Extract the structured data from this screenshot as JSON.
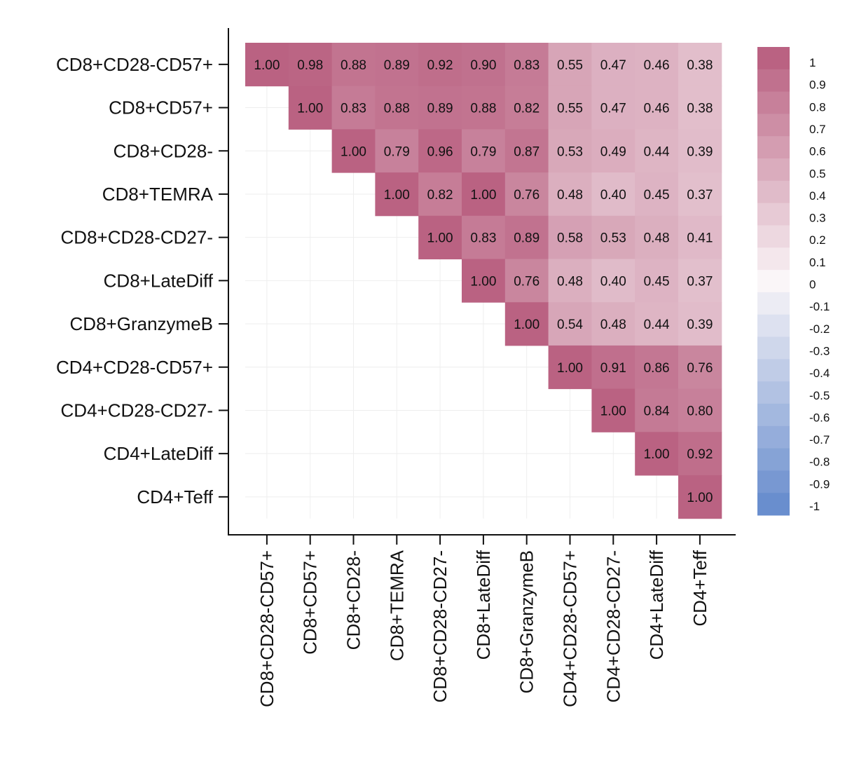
{
  "chart_data": {
    "type": "heatmap",
    "title": "",
    "layout": "upper-triangle correlation matrix",
    "labels": [
      "CD8+CD28-CD57+",
      "CD8+CD57+",
      "CD8+CD28-",
      "CD8+TEMRA",
      "CD8+CD28-CD27-",
      "CD8+LateDiff",
      "CD8+GranzymeB",
      "CD4+CD28-CD57+",
      "CD4+CD28-CD27-",
      "CD4+LateDiff",
      "CD4+Teff"
    ],
    "values": [
      [
        "1.00",
        "0.98",
        "0.88",
        "0.89",
        "0.92",
        "0.90",
        "0.83",
        "0.55",
        "0.47",
        "0.46",
        "0.38"
      ],
      [
        null,
        "1.00",
        "0.83",
        "0.88",
        "0.89",
        "0.88",
        "0.82",
        "0.55",
        "0.47",
        "0.46",
        "0.38"
      ],
      [
        null,
        null,
        "1.00",
        "0.79",
        "0.96",
        "0.79",
        "0.87",
        "0.53",
        "0.49",
        "0.44",
        "0.39"
      ],
      [
        null,
        null,
        null,
        "1.00",
        "0.82",
        "1.00",
        "0.76",
        "0.48",
        "0.40",
        "0.45",
        "0.37"
      ],
      [
        null,
        null,
        null,
        null,
        "1.00",
        "0.83",
        "0.89",
        "0.58",
        "0.53",
        "0.48",
        "0.41"
      ],
      [
        null,
        null,
        null,
        null,
        null,
        "1.00",
        "0.76",
        "0.48",
        "0.40",
        "0.45",
        "0.37"
      ],
      [
        null,
        null,
        null,
        null,
        null,
        null,
        "1.00",
        "0.54",
        "0.48",
        "0.44",
        "0.39"
      ],
      [
        null,
        null,
        null,
        null,
        null,
        null,
        null,
        "1.00",
        "0.91",
        "0.86",
        "0.76"
      ],
      [
        null,
        null,
        null,
        null,
        null,
        null,
        null,
        null,
        "1.00",
        "0.84",
        "0.80"
      ],
      [
        null,
        null,
        null,
        null,
        null,
        null,
        null,
        null,
        null,
        "1.00",
        "0.92"
      ],
      [
        null,
        null,
        null,
        null,
        null,
        null,
        null,
        null,
        null,
        null,
        "1.00"
      ]
    ],
    "colorbar": {
      "range": [
        -1,
        1
      ],
      "ticks": [
        "1",
        "0.9",
        "0.8",
        "0.7",
        "0.6",
        "0.5",
        "0.4",
        "0.3",
        "0.2",
        "0.1",
        "0",
        "-0.1",
        "-0.2",
        "-0.3",
        "-0.4",
        "-0.5",
        "-0.6",
        "-0.7",
        "-0.8",
        "-0.9",
        "-1"
      ],
      "color_max": "#ba6282",
      "color_zero": "#faf6f8",
      "color_min": "#698ece"
    }
  }
}
